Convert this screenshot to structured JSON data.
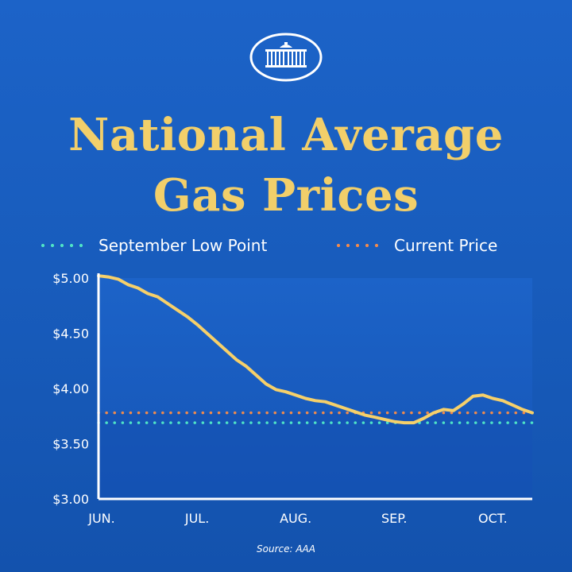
{
  "title_line1": "National Average",
  "title_line2": "Gas Prices",
  "source": "Source: AAA",
  "colors": {
    "background": "#1c63c8",
    "title": "#f2cf6a",
    "line": "#f6d06a",
    "september_low": "#4ee2c6",
    "current_price": "#f08a4c"
  },
  "chart_data": {
    "type": "line",
    "title": "National Average Gas Prices",
    "xlabel": "",
    "ylabel": "",
    "ylim": [
      3.0,
      5.0
    ],
    "yticks": [
      5.0,
      4.5,
      4.0,
      3.5,
      3.0
    ],
    "ytick_labels": [
      "$5.00",
      "$4.50",
      "$4.00",
      "$3.50",
      "$3.00"
    ],
    "xlim": [
      0,
      4.4
    ],
    "xticks": [
      0,
      1,
      2,
      3,
      4
    ],
    "xtick_labels": [
      "JUN.",
      "JUL.",
      "AUG.",
      "SEP.",
      "OCT."
    ],
    "legend": [
      {
        "label": "September Low Point",
        "style": "dotted",
        "color": "#4ee2c6"
      },
      {
        "label": "Current Price",
        "style": "dotted",
        "color": "#f08a4c"
      }
    ],
    "reference_lines": [
      {
        "name": "September Low Point",
        "value": 3.69
      },
      {
        "name": "Current Price",
        "value": 3.78
      }
    ],
    "series": [
      {
        "name": "National Average",
        "x": [
          0,
          0.1,
          0.2,
          0.3,
          0.4,
          0.5,
          0.6,
          0.7,
          0.8,
          0.9,
          1.0,
          1.1,
          1.2,
          1.3,
          1.4,
          1.5,
          1.6,
          1.7,
          1.8,
          1.9,
          2.0,
          2.1,
          2.2,
          2.3,
          2.4,
          2.5,
          2.6,
          2.7,
          2.8,
          2.9,
          3.0,
          3.1,
          3.2,
          3.3,
          3.4,
          3.5,
          3.6,
          3.7,
          3.8,
          3.9,
          4.0,
          4.1,
          4.2,
          4.3,
          4.4
        ],
        "y": [
          5.02,
          5.01,
          4.99,
          4.94,
          4.91,
          4.86,
          4.83,
          4.77,
          4.71,
          4.65,
          4.58,
          4.5,
          4.42,
          4.34,
          4.26,
          4.2,
          4.12,
          4.04,
          3.99,
          3.97,
          3.94,
          3.91,
          3.89,
          3.88,
          3.85,
          3.82,
          3.79,
          3.76,
          3.74,
          3.72,
          3.7,
          3.69,
          3.69,
          3.73,
          3.78,
          3.81,
          3.8,
          3.86,
          3.93,
          3.94,
          3.91,
          3.89,
          3.85,
          3.81,
          3.78
        ]
      }
    ]
  },
  "legend": {
    "september": "September Low Point",
    "current": "Current Price"
  }
}
